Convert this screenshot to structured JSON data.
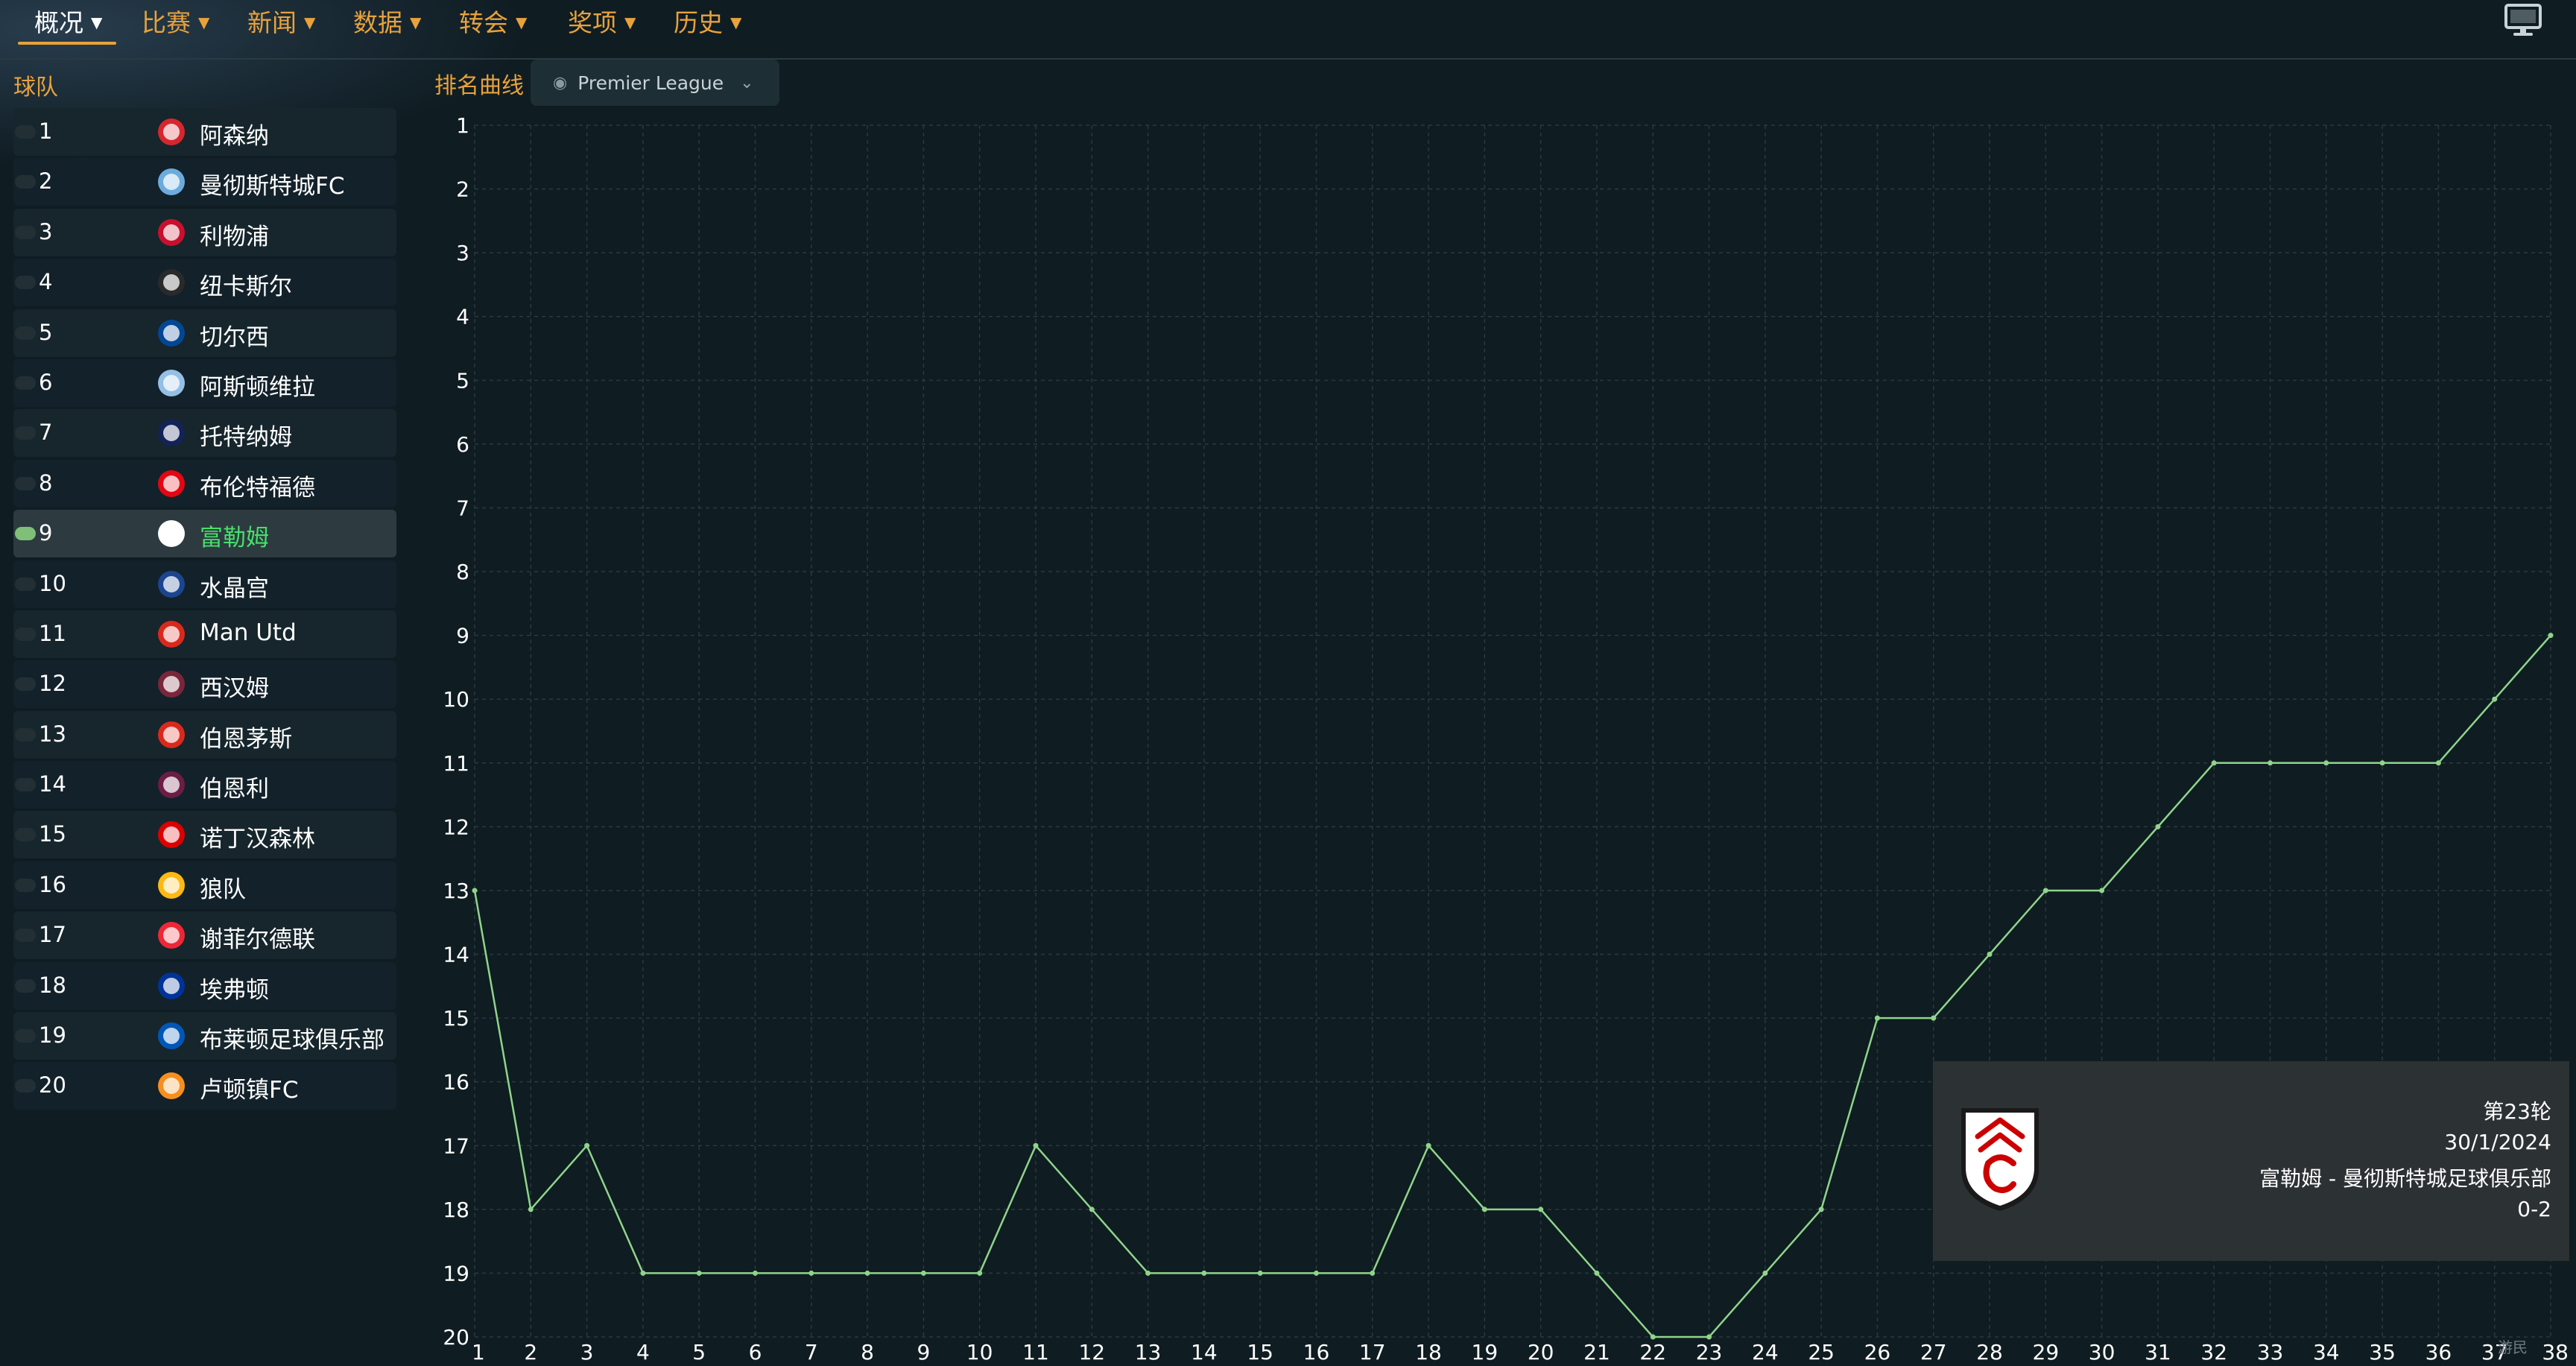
{
  "nav": {
    "items": [
      {
        "label": "概况",
        "active": true
      },
      {
        "label": "比赛"
      },
      {
        "label": "新闻"
      },
      {
        "label": "数据"
      },
      {
        "label": "转会"
      },
      {
        "label": "奖项"
      },
      {
        "label": "历史"
      }
    ],
    "monitor_icon": "monitor-icon"
  },
  "team_table": {
    "header": "球队",
    "selected_position": 9,
    "rows": [
      {
        "pos": "1",
        "name": "阿森纳",
        "badge_color": "#d7262e"
      },
      {
        "pos": "2",
        "name": "曼彻斯特城FC",
        "badge_color": "#6cabdd"
      },
      {
        "pos": "3",
        "name": "利物浦",
        "badge_color": "#c8102e"
      },
      {
        "pos": "4",
        "name": "纽卡斯尔",
        "badge_color": "#2a2a2a"
      },
      {
        "pos": "5",
        "name": "切尔西",
        "badge_color": "#034694"
      },
      {
        "pos": "6",
        "name": "阿斯顿维拉",
        "badge_color": "#95bfe5"
      },
      {
        "pos": "7",
        "name": "托特纳姆",
        "badge_color": "#132257"
      },
      {
        "pos": "8",
        "name": "布伦特福德",
        "badge_color": "#e30613"
      },
      {
        "pos": "9",
        "name": "富勒姆",
        "badge_color": "#ffffff"
      },
      {
        "pos": "10",
        "name": "水晶宫",
        "badge_color": "#1b458f"
      },
      {
        "pos": "11",
        "name": "Man Utd",
        "badge_color": "#da291c"
      },
      {
        "pos": "12",
        "name": "西汉姆",
        "badge_color": "#7a263a"
      },
      {
        "pos": "13",
        "name": "伯恩茅斯",
        "badge_color": "#da291c"
      },
      {
        "pos": "14",
        "name": "伯恩利",
        "badge_color": "#6c1d45"
      },
      {
        "pos": "15",
        "name": "诺丁汉森林",
        "badge_color": "#dd0000"
      },
      {
        "pos": "16",
        "name": "狼队",
        "badge_color": "#fdb913"
      },
      {
        "pos": "17",
        "name": "谢菲尔德联",
        "badge_color": "#ee2737"
      },
      {
        "pos": "18",
        "name": "埃弗顿",
        "badge_color": "#003399"
      },
      {
        "pos": "19",
        "name": "布莱顿足球俱乐部",
        "badge_color": "#0057b8"
      },
      {
        "pos": "20",
        "name": "卢顿镇FC",
        "badge_color": "#f78f1e"
      }
    ]
  },
  "chart_header": {
    "title": "排名曲线",
    "league": "Premier League"
  },
  "chart_data": {
    "type": "line",
    "x": [
      1,
      2,
      3,
      4,
      5,
      6,
      7,
      8,
      9,
      10,
      11,
      12,
      13,
      14,
      15,
      16,
      17,
      18,
      19,
      20,
      21,
      22,
      23,
      24,
      25,
      26,
      27,
      28,
      29,
      30,
      31,
      32,
      33,
      34,
      35,
      36,
      37,
      38
    ],
    "x_ticks": [
      "1",
      "2",
      "3",
      "4",
      "5",
      "6",
      "7",
      "8",
      "9",
      "10",
      "11",
      "12",
      "13",
      "14",
      "15",
      "16",
      "17",
      "18",
      "19",
      "20",
      "21",
      "22",
      "23",
      "24",
      "25",
      "26",
      "27",
      "28",
      "29",
      "30",
      "31",
      "32",
      "33",
      "34",
      "35",
      "36",
      "37",
      "38"
    ],
    "y_ticks": [
      "1",
      "2",
      "3",
      "4",
      "5",
      "6",
      "7",
      "8",
      "9",
      "10",
      "11",
      "12",
      "13",
      "14",
      "15",
      "16",
      "17",
      "18",
      "19",
      "20"
    ],
    "ylim": [
      1,
      20
    ],
    "y_inverted": true,
    "grid": true,
    "line_color": "#8fd48a",
    "series": [
      {
        "values": [
          13,
          18,
          17,
          19,
          19,
          19,
          19,
          19,
          19,
          19,
          17,
          18,
          19,
          19,
          19,
          19,
          19,
          17,
          18,
          18,
          19,
          20,
          20,
          19,
          18,
          15,
          15,
          14,
          13,
          13,
          12,
          11,
          11,
          11,
          11,
          11,
          10,
          9
        ]
      }
    ]
  },
  "tooltip": {
    "round": "第23轮",
    "date": "30/1/2024",
    "match": "富勒姆 - 曼彻斯特城足球俱乐部",
    "score": "0-2",
    "crest_icon": "fulham-crest-icon"
  },
  "watermark": "游民"
}
